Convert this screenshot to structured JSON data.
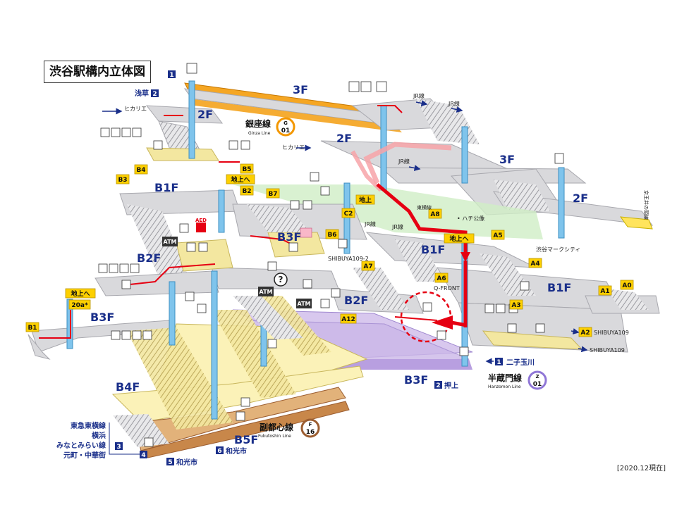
{
  "title": "渋谷駅構内立体図",
  "date_note": "[2020.12現在]",
  "floors": {
    "f3_top": "3F",
    "f2_left": "2F",
    "f2_mid": "2F",
    "f3_right": "3F",
    "f2_right": "2F",
    "b1f_left": "B1F",
    "b1f_center": "B1F",
    "b1f_right": "B1F",
    "b2f_left": "B2F",
    "b2f_center": "B2F",
    "b3f_left": "B3F",
    "b3f_center": "B3F",
    "b3f_bottom": "B3F",
    "b4f": "B4F",
    "b5f": "B5F"
  },
  "lines": {
    "ginza": {
      "jp": "銀座線",
      "en": "Ginza Line",
      "letter": "G",
      "num": "01",
      "color": "#f39700"
    },
    "hanzomon": {
      "jp": "半蔵門線",
      "en": "Hanzomon Line",
      "letter": "Z",
      "num": "01",
      "color": "#8f76d6"
    },
    "fukutoshin": {
      "jp": "副都心線",
      "en": "Fukutoshin Line",
      "letter": "F",
      "num": "16",
      "color": "#9c5e31"
    }
  },
  "exits": {
    "b1": "B1",
    "b3": "B3",
    "b4": "B4",
    "b5": "B5",
    "b2": "B2",
    "b7": "B7",
    "b6": "B6",
    "c2": "C2",
    "a8": "A8",
    "a5": "A5",
    "a7": "A7",
    "a6": "A6",
    "a4": "A4",
    "a3": "A3",
    "a1": "A1",
    "a0": "A0",
    "a2": "A2",
    "a12": "A12",
    "exit20a": "20a*"
  },
  "labels": {
    "chikajoue_left": "地上へ",
    "chikajoue_b5": "地上へ",
    "chijou": "地上",
    "chikajoue_center": "地上へ",
    "hikarie_top": "ヒカリエ",
    "hikarie_mid": "ヒカリエ",
    "jr_top": "JR線",
    "jr_top2": "JR線",
    "jr_mid": "JR線",
    "jr_lower": "JR線",
    "jr_lower2": "JR線",
    "hachiko": "• ハチ公像",
    "qfront": "Q-FRONT",
    "shibuya1092": "SHIBUYA109-2",
    "shibuya109": "SHIBUYA109",
    "shibuya109b": "SHIBUYA109",
    "mark_city": "渋谷マークシティ",
    "keio": "京王井の頭線",
    "toyoko": "東横線",
    "atm1": "ATM",
    "atm2": "ATM",
    "atm3": "ATM",
    "aed": "AED",
    "question": "?"
  },
  "directions": {
    "d1_top_num": "1",
    "d2_asakusa_num": "2",
    "d2_asakusa": "浅草",
    "d1_futako_num": "1",
    "d1_futako": "二子玉川",
    "d2_oshiage_num": "2",
    "d2_oshiage": "押上",
    "d3_num": "3",
    "d4_num": "4",
    "d5_num": "5",
    "d5": "和光市",
    "d6_num": "6",
    "d6": "和光市",
    "toyoko_lines": [
      "東急東横線",
      "横浜",
      "みなとみらい線",
      "元町・中華街"
    ]
  },
  "colors": {
    "platform_gray": "#d9d9dc",
    "platform_edge": "#a8a8ae",
    "concourse_yellow": "#fbf2b8",
    "concourse_purple": "#d8c8ee",
    "pillar_blue": "#7fc4ec",
    "route_red": "#e60012",
    "exit_yellow": "#fdd000",
    "floor_label_blue": "#1a2f8a",
    "green_zone": "#cfeec6"
  }
}
